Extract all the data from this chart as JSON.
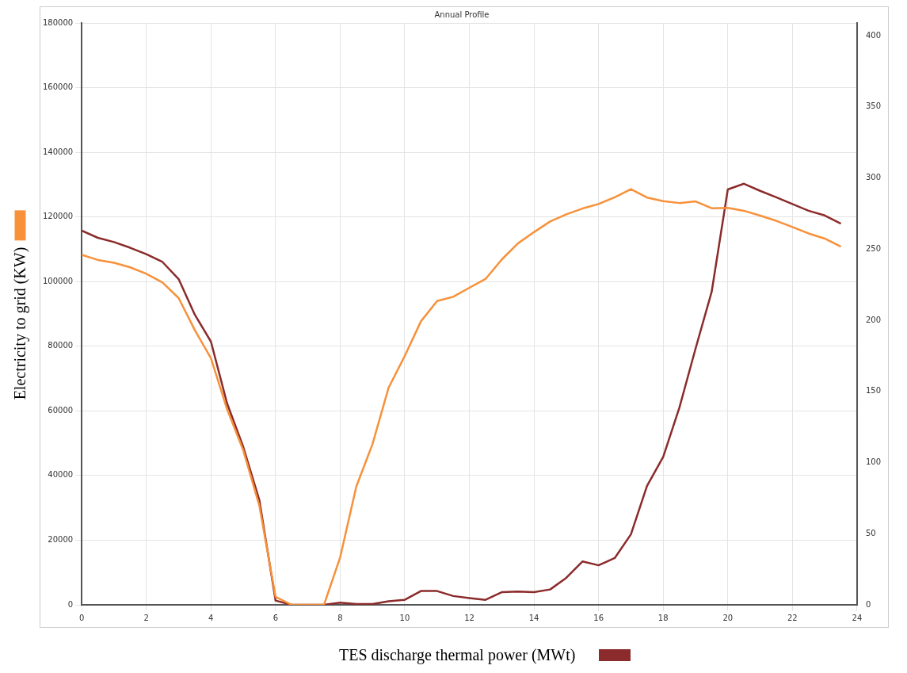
{
  "chart_data": {
    "type": "line",
    "title": "Annual Profile",
    "x": [
      0,
      0.5,
      1,
      1.5,
      2,
      2.5,
      3,
      3.5,
      4,
      4.5,
      5,
      5.5,
      6,
      6.5,
      7,
      7.5,
      8,
      8.5,
      9,
      9.5,
      10,
      10.5,
      11,
      11.5,
      12,
      12.5,
      13,
      13.5,
      14,
      14.5,
      15,
      15.5,
      16,
      16.5,
      17,
      17.5,
      18,
      18.5,
      19,
      19.5,
      20,
      20.5,
      21,
      21.5,
      22,
      22.5,
      23,
      23.5
    ],
    "series": [
      {
        "color": "#f7913a",
        "values": [
          108300,
          106700,
          105800,
          104400,
          102400,
          99700,
          94900,
          85000,
          76300,
          60500,
          47800,
          30600,
          2500,
          0,
          0,
          0,
          14700,
          36600,
          49700,
          67200,
          77000,
          87700,
          94000,
          95300,
          98100,
          100800,
          106800,
          111800,
          115300,
          118600,
          120800,
          122600,
          124000,
          126100,
          128600,
          126000,
          124900,
          124300,
          124800,
          122700,
          122800,
          121900,
          120400,
          118800,
          116900,
          114900,
          113300,
          110800
        ]
      },
      {
        "name": "TES discharge thermal power (MWt)",
        "color": "#8b2b2b",
        "axis": "y2",
        "values": [
          263,
          258,
          255,
          251,
          246.5,
          241,
          229,
          204,
          185,
          141.5,
          111,
          73.5,
          3,
          0,
          0,
          0,
          1.5,
          0.5,
          0.5,
          2.5,
          3.5,
          9.7,
          9.7,
          6.2,
          4.8,
          3.5,
          8.9,
          9.4,
          8.9,
          10.8,
          19,
          30.5,
          27.8,
          32.9,
          49.5,
          83.7,
          104,
          138.5,
          180,
          220,
          292,
          296,
          291,
          286.5,
          281.7,
          277,
          273.7,
          268
        ]
      }
    ],
    "xlim": [
      0,
      24
    ],
    "xticks": [
      0,
      2,
      4,
      6,
      8,
      10,
      12,
      14,
      16,
      18,
      20,
      22,
      24
    ],
    "ylim": [
      0,
      180000
    ],
    "yticks": [
      0,
      20000,
      40000,
      60000,
      80000,
      100000,
      120000,
      140000,
      160000,
      180000
    ],
    "y2lim": [
      0,
      409
    ],
    "y2ticks": [
      0,
      50,
      100,
      150,
      200,
      250,
      300,
      350,
      400
    ],
    "ylabel": "Electricity to grid (KW)",
    "grid": true,
    "legend": "bottom",
    "marker": "none",
    "line_style": "solid"
  }
}
